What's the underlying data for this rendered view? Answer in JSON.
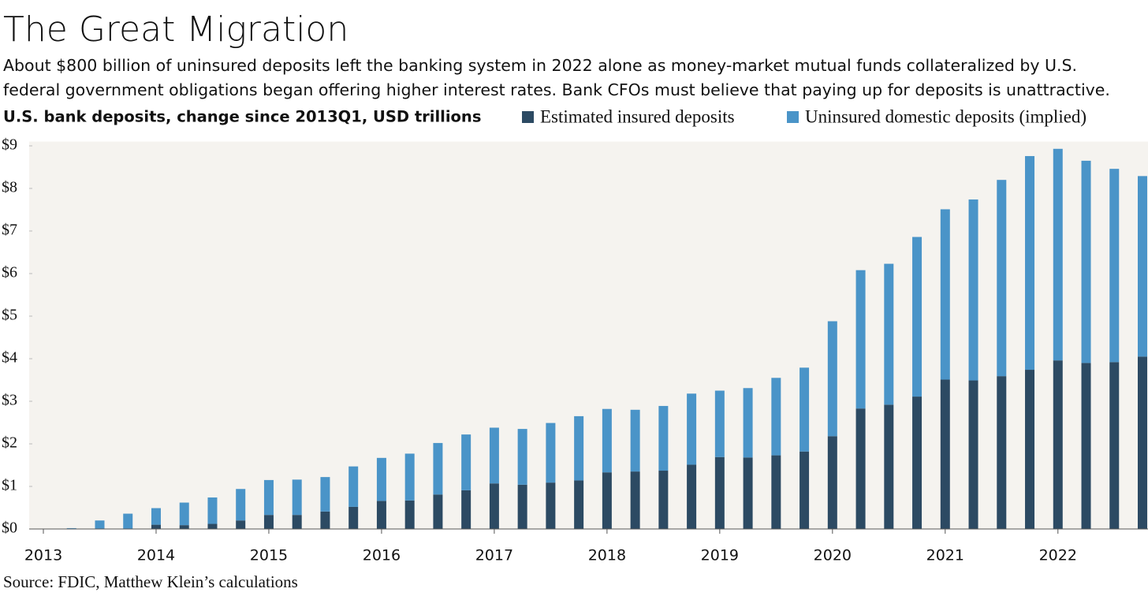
{
  "chart_data": {
    "type": "stacked-bar",
    "title": "The Great Migration",
    "subtitle": [
      "About $800 billion of uninsured deposits left the banking system in 2022 alone as money-market mutual funds collateralized by U.S.",
      "federal government obligations began offering higher interest rates. Bank CFOs must believe that paying up for deposits is unattractive."
    ],
    "y_label": "U.S. bank deposits, change since 2013Q1, USD trillions",
    "source": "Source: FDIC, Matthew Klein’s calculations",
    "categories": [
      "2013",
      null,
      null,
      null,
      "2014",
      null,
      null,
      null,
      "2015",
      null,
      null,
      null,
      "2016",
      null,
      null,
      null,
      "2017",
      null,
      null,
      null,
      "2018",
      null,
      null,
      null,
      "2019",
      null,
      null,
      null,
      "2020",
      null,
      null,
      null,
      "2021",
      null,
      null,
      null,
      "2022",
      null,
      null,
      null
    ],
    "series": [
      {
        "name": "Estimated insured deposits",
        "color": "#2c4a63",
        "values": [
          0,
          0,
          0,
          0,
          0.1,
          0.09,
          0.12,
          0.2,
          0.33,
          0.33,
          0.41,
          0.52,
          0.66,
          0.67,
          0.81,
          0.91,
          1.07,
          1.04,
          1.09,
          1.14,
          1.33,
          1.35,
          1.37,
          1.51,
          1.69,
          1.68,
          1.73,
          1.82,
          2.18,
          2.83,
          2.92,
          3.11,
          3.51,
          3.49,
          3.59,
          3.74,
          3.96,
          3.9,
          3.92,
          4.05
        ]
      },
      {
        "name": "Uninsured domestic deposits (implied)",
        "color": "#4a94c8",
        "values": [
          0,
          0.02,
          0.2,
          0.36,
          0.39,
          0.53,
          0.62,
          0.74,
          0.82,
          0.83,
          0.81,
          0.95,
          1.01,
          1.1,
          1.21,
          1.31,
          1.31,
          1.31,
          1.4,
          1.51,
          1.49,
          1.45,
          1.52,
          1.67,
          1.56,
          1.63,
          1.82,
          1.97,
          2.7,
          3.25,
          3.31,
          3.75,
          4.0,
          4.25,
          4.61,
          5.02,
          4.97,
          4.75,
          4.54,
          4.24
        ]
      }
    ],
    "ylim": [
      0,
      9.1
    ],
    "yticks": [
      {
        "value": 0,
        "label": "$0"
      },
      {
        "value": 1,
        "label": "$1"
      },
      {
        "value": 2,
        "label": "$2"
      },
      {
        "value": 3,
        "label": "$3"
      },
      {
        "value": 4,
        "label": "$4"
      },
      {
        "value": 5,
        "label": "$5"
      },
      {
        "value": 6,
        "label": "$6"
      },
      {
        "value": 7,
        "label": "$7"
      },
      {
        "value": 8,
        "label": "$8"
      },
      {
        "value": 9,
        "label": "$9"
      }
    ],
    "grid": false,
    "background": "#f5f3ef"
  }
}
